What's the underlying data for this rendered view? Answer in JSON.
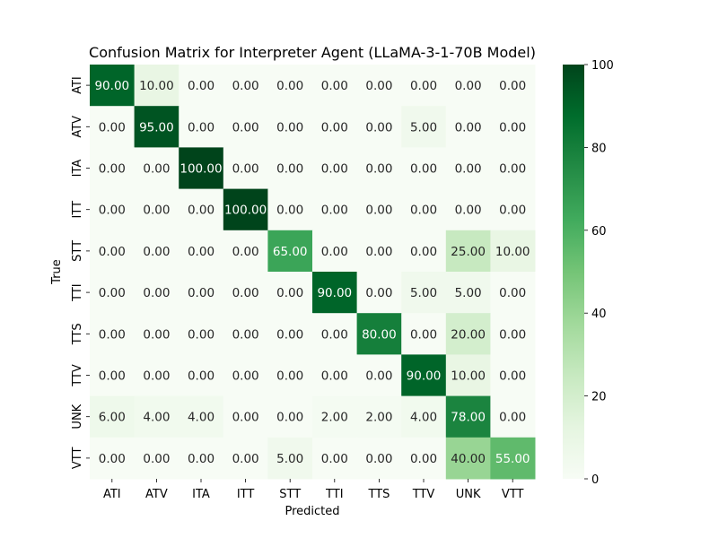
{
  "chart_data": {
    "type": "heatmap",
    "title": "Confusion Matrix for Interpreter Agent (LLaMA-3-1-70B Model)",
    "xlabel": "Predicted",
    "ylabel": "True",
    "x_categories": [
      "ATI",
      "ATV",
      "ITA",
      "ITT",
      "STT",
      "TTI",
      "TTS",
      "TTV",
      "UNK",
      "VTT"
    ],
    "y_categories": [
      "ATI",
      "ATV",
      "ITA",
      "ITT",
      "STT",
      "TTI",
      "TTS",
      "TTV",
      "UNK",
      "VTT"
    ],
    "values": [
      [
        90,
        10,
        0,
        0,
        0,
        0,
        0,
        0,
        0,
        0
      ],
      [
        0,
        95,
        0,
        0,
        0,
        0,
        0,
        5,
        0,
        0
      ],
      [
        0,
        0,
        100,
        0,
        0,
        0,
        0,
        0,
        0,
        0
      ],
      [
        0,
        0,
        0,
        100,
        0,
        0,
        0,
        0,
        0,
        0
      ],
      [
        0,
        0,
        0,
        0,
        65,
        0,
        0,
        0,
        25,
        10
      ],
      [
        0,
        0,
        0,
        0,
        0,
        90,
        0,
        5,
        5,
        0
      ],
      [
        0,
        0,
        0,
        0,
        0,
        0,
        80,
        0,
        20,
        0
      ],
      [
        0,
        0,
        0,
        0,
        0,
        0,
        0,
        90,
        10,
        0
      ],
      [
        6,
        4,
        4,
        0,
        0,
        2,
        2,
        4,
        78,
        0
      ],
      [
        0,
        0,
        0,
        0,
        5,
        0,
        0,
        0,
        40,
        55
      ]
    ],
    "value_format_decimals": 2,
    "colormap": "Greens",
    "vmin": 0,
    "vmax": 100,
    "colorbar_ticks": [
      0,
      20,
      40,
      60,
      80,
      100
    ],
    "grid": false
  }
}
